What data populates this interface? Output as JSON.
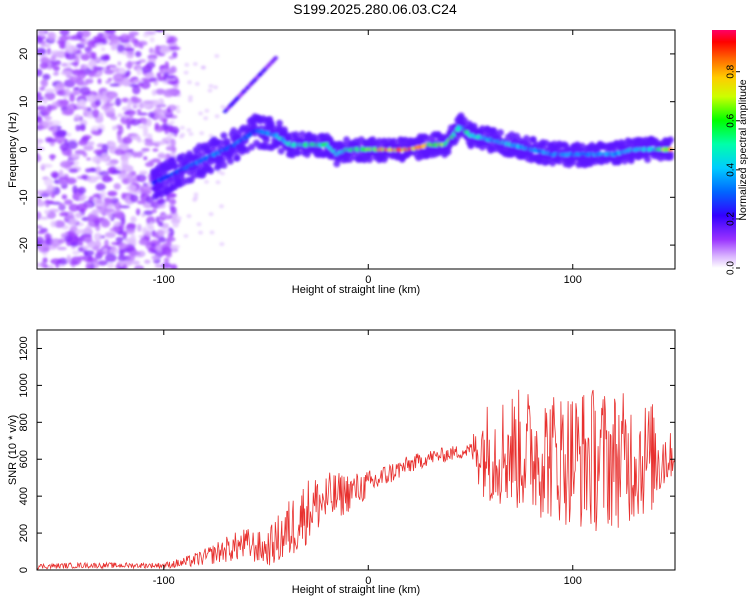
{
  "title": "S199.2025.280.06.03.C24",
  "colors": {
    "snr_line": "#e8312f",
    "axis": "#000000",
    "background": "#ffffff"
  },
  "chart_data": [
    {
      "type": "heatmap",
      "title": "S199.2025.280.06.03.C24",
      "xlabel": "Height of straight line (km)",
      "ylabel": "Frequency (Hz)",
      "xlim": [
        -162,
        150
      ],
      "ylim": [
        -25,
        25
      ],
      "xticks": [
        -100,
        0,
        100
      ],
      "yticks": [
        -20,
        -10,
        0,
        10,
        20
      ],
      "xtick_labels": [
        "-100",
        "0",
        "100"
      ],
      "ytick_labels": [
        "-20",
        "-10",
        "0",
        "10",
        "20"
      ],
      "colorbar": {
        "label": "Normalized spectral amplitude",
        "range": [
          0.0,
          0.97
        ],
        "ticks": [
          0.0,
          0.2,
          0.4,
          0.6,
          0.8
        ],
        "tick_labels": [
          "0.0",
          "0.2",
          "0.4",
          "0.6",
          "0.8"
        ],
        "colormap": "rainbow"
      },
      "ridge_track": {
        "x": [
          -105,
          -95,
          -85,
          -75,
          -65,
          -55,
          -45,
          -38,
          -30,
          -20,
          -15,
          -10,
          0,
          10,
          20,
          30,
          38,
          42,
          45,
          50,
          60,
          70,
          80,
          90,
          100,
          110,
          120,
          130,
          140,
          148
        ],
        "y": [
          -7,
          -5,
          -3,
          -1,
          1,
          4,
          3,
          1,
          1,
          1,
          -1,
          0,
          0,
          0,
          0,
          1,
          1,
          3,
          5,
          3,
          2,
          1,
          0,
          -1,
          -1,
          -1,
          -1,
          0,
          0,
          0
        ],
        "peak_amplitude": [
          0.3,
          0.3,
          0.35,
          0.35,
          0.35,
          0.3,
          0.45,
          0.55,
          0.6,
          0.55,
          0.5,
          0.6,
          0.65,
          0.95,
          0.95,
          0.8,
          0.7,
          0.6,
          0.55,
          0.55,
          0.45,
          0.45,
          0.4,
          0.4,
          0.4,
          0.4,
          0.4,
          0.45,
          0.5,
          0.9
        ]
      },
      "noise_region": {
        "x_range": [
          -162,
          -100
        ],
        "y_range": [
          -25,
          25
        ],
        "amplitude": 0.1
      }
    },
    {
      "type": "line",
      "xlabel": "Height of straight line (km)",
      "ylabel": "SNR (10 * v/v)",
      "xlim": [
        -162,
        150
      ],
      "ylim": [
        0,
        1300
      ],
      "xticks": [
        -100,
        0,
        100
      ],
      "yticks": [
        0,
        200,
        400,
        600,
        800,
        1000,
        1200
      ],
      "xtick_labels": [
        "-100",
        "0",
        "100"
      ],
      "ytick_labels": [
        "0",
        "200",
        "400",
        "600",
        "800",
        "1000",
        "1200"
      ],
      "series": [
        {
          "name": "SNR",
          "x": [
            -160,
            -140,
            -120,
            -100,
            -90,
            -80,
            -70,
            -60,
            -50,
            -40,
            -35,
            -30,
            -25,
            -20,
            -15,
            -10,
            -5,
            0,
            10,
            20,
            30,
            40,
            45,
            50,
            55,
            60,
            70,
            80,
            90,
            100,
            110,
            120,
            130,
            140,
            150
          ],
          "y": [
            20,
            25,
            25,
            25,
            40,
            70,
            110,
            140,
            110,
            200,
            260,
            320,
            360,
            380,
            400,
            420,
            440,
            460,
            520,
            570,
            610,
            630,
            640,
            650,
            660,
            640,
            650,
            640,
            620,
            610,
            600,
            600,
            600,
            610,
            620
          ],
          "fluctuation": [
            15,
            15,
            15,
            15,
            30,
            45,
            70,
            90,
            90,
            170,
            180,
            180,
            160,
            150,
            130,
            110,
            90,
            80,
            60,
            50,
            40,
            40,
            40,
            40,
            250,
            280,
            330,
            350,
            360,
            380,
            400,
            380,
            350,
            300,
            80
          ]
        }
      ]
    }
  ]
}
